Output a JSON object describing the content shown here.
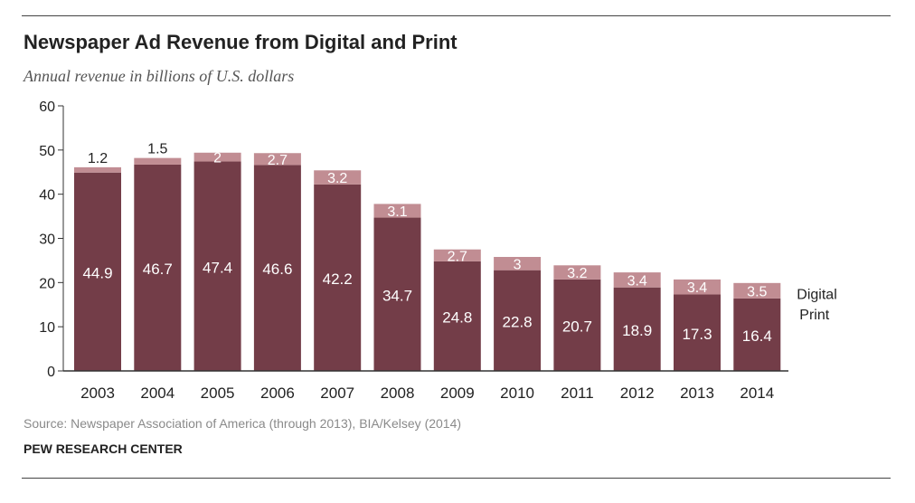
{
  "header": {
    "title": "Newspaper Ad Revenue from Digital and Print",
    "subtitle": "Annual revenue in billions of U.S. dollars"
  },
  "footer": {
    "source": "Source: Newspaper Association of America (through 2013), BIA/Kelsey (2014)",
    "organization": "PEW RESEARCH CENTER"
  },
  "colors": {
    "print": "#733d48",
    "digital": "#c18d93",
    "text": "#222222",
    "axis": "#333333"
  },
  "chart_data": {
    "type": "bar",
    "stacked": true,
    "title": "Newspaper Ad Revenue from Digital and Print",
    "subtitle": "Annual revenue in billions of U.S. dollars",
    "xlabel": "",
    "ylabel": "",
    "ylim": [
      0,
      60
    ],
    "yticks": [
      0,
      10,
      20,
      30,
      40,
      50,
      60
    ],
    "grid": false,
    "legend": "inline-right",
    "categories": [
      "2003",
      "2004",
      "2005",
      "2006",
      "2007",
      "2008",
      "2009",
      "2010",
      "2011",
      "2012",
      "2013",
      "2014"
    ],
    "series": [
      {
        "name": "Print",
        "values": [
          44.9,
          46.7,
          47.4,
          46.6,
          42.2,
          34.7,
          24.8,
          22.8,
          20.7,
          18.9,
          17.3,
          16.4
        ]
      },
      {
        "name": "Digital",
        "values": [
          1.2,
          1.5,
          2,
          2.7,
          3.2,
          3.1,
          2.7,
          3,
          3.2,
          3.4,
          3.4,
          3.5
        ]
      }
    ]
  }
}
